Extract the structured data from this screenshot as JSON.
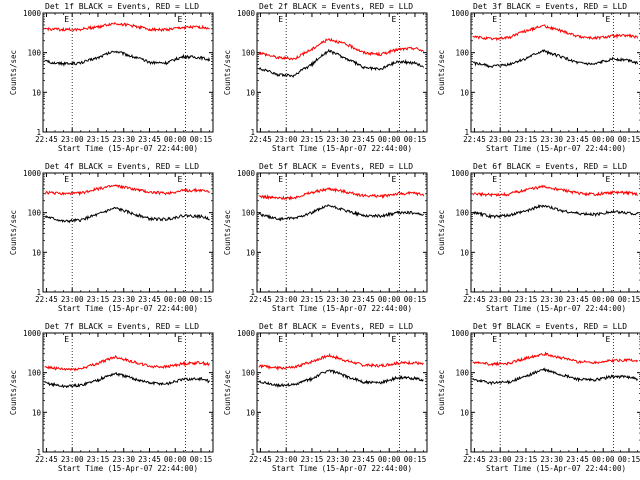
{
  "chart_data": [
    {
      "type": "line",
      "title": "Det 1f BLACK = Events, RED = LLD",
      "xlabel": "Start Time (15-Apr-07 22:44:00)",
      "ylabel": "Counts/sec",
      "yscale": "log",
      "ylim": [
        1,
        1000
      ],
      "xlim": [
        "22:43",
        "00:22"
      ],
      "x_ticks": [
        "22:45",
        "23:00",
        "23:15",
        "23:30",
        "23:45",
        "00:00",
        "00:15"
      ],
      "y_ticks": [
        "1",
        "10",
        "100",
        "1000"
      ],
      "markers": {
        "labels": [
          "E",
          "E"
        ],
        "x": [
          "23:00",
          "00:06"
        ]
      },
      "series": [
        {
          "color": "#ff0000",
          "x": [
            "22:44",
            "22:55",
            "23:05",
            "23:15",
            "23:25",
            "23:35",
            "23:45",
            "23:55",
            "00:05",
            "00:15",
            "00:20"
          ],
          "values": [
            400,
            380,
            390,
            450,
            550,
            480,
            390,
            380,
            430,
            440,
            420
          ]
        },
        {
          "color": "#000000",
          "x": [
            "22:44",
            "22:55",
            "23:05",
            "23:15",
            "23:25",
            "23:35",
            "23:45",
            "23:55",
            "00:05",
            "00:15",
            "00:20"
          ],
          "values": [
            60,
            52,
            55,
            75,
            110,
            80,
            57,
            55,
            80,
            75,
            65
          ]
        }
      ]
    },
    {
      "type": "line",
      "title": "Det 2f BLACK = Events, RED = LLD",
      "xlabel": "Start Time (15-Apr-07 22:44:00)",
      "ylabel": "Counts/sec",
      "yscale": "log",
      "ylim": [
        1,
        1000
      ],
      "xlim": [
        "22:43",
        "00:22"
      ],
      "x_ticks": [
        "22:45",
        "23:00",
        "23:15",
        "23:30",
        "23:45",
        "00:00",
        "00:15"
      ],
      "y_ticks": [
        "1",
        "10",
        "100",
        "1000"
      ],
      "markers": {
        "labels": [
          "E",
          "E"
        ],
        "x": [
          "23:00",
          "00:06"
        ]
      },
      "series": [
        {
          "color": "#ff0000",
          "x": [
            "22:44",
            "22:55",
            "23:05",
            "23:15",
            "23:25",
            "23:35",
            "23:45",
            "23:55",
            "00:05",
            "00:15",
            "00:20"
          ],
          "values": [
            100,
            75,
            70,
            120,
            220,
            160,
            100,
            90,
            120,
            130,
            110
          ]
        },
        {
          "color": "#000000",
          "x": [
            "22:44",
            "22:55",
            "23:05",
            "23:15",
            "23:25",
            "23:35",
            "23:45",
            "23:55",
            "00:05",
            "00:15",
            "00:20"
          ],
          "values": [
            40,
            28,
            26,
            50,
            110,
            70,
            42,
            38,
            60,
            55,
            45
          ]
        }
      ]
    },
    {
      "type": "line",
      "title": "Det 3f BLACK = Events, RED = LLD",
      "xlabel": "Start Time (15-Apr-07 22:44:00)",
      "ylabel": "Counts/sec",
      "yscale": "log",
      "ylim": [
        1,
        1000
      ],
      "xlim": [
        "22:43",
        "00:22"
      ],
      "x_ticks": [
        "22:45",
        "23:00",
        "23:15",
        "23:30",
        "23:45",
        "00:00",
        "00:15"
      ],
      "y_ticks": [
        "1",
        "10",
        "100",
        "1000"
      ],
      "markers": {
        "labels": [
          "E",
          "E"
        ],
        "x": [
          "23:00",
          "00:06"
        ]
      },
      "series": [
        {
          "color": "#ff0000",
          "x": [
            "22:44",
            "22:55",
            "23:05",
            "23:15",
            "23:25",
            "23:35",
            "23:45",
            "23:55",
            "00:05",
            "00:15",
            "00:20"
          ],
          "values": [
            250,
            220,
            240,
            350,
            480,
            360,
            260,
            230,
            260,
            270,
            240
          ]
        },
        {
          "color": "#000000",
          "x": [
            "22:44",
            "22:55",
            "23:05",
            "23:15",
            "23:25",
            "23:35",
            "23:45",
            "23:55",
            "00:05",
            "00:15",
            "00:20"
          ],
          "values": [
            55,
            45,
            50,
            70,
            110,
            80,
            55,
            50,
            70,
            65,
            55
          ]
        }
      ]
    },
    {
      "type": "line",
      "title": "Det 4f BLACK = Events, RED = LLD",
      "xlabel": "Start Time (15-Apr-07 22:44:00)",
      "ylabel": "Counts/sec",
      "yscale": "log",
      "ylim": [
        1,
        1000
      ],
      "xlim": [
        "22:43",
        "00:22"
      ],
      "x_ticks": [
        "22:45",
        "23:00",
        "23:15",
        "23:30",
        "23:45",
        "00:00",
        "00:15"
      ],
      "y_ticks": [
        "1",
        "10",
        "100",
        "1000"
      ],
      "markers": {
        "labels": [
          "E",
          "E"
        ],
        "x": [
          "23:00",
          "00:06"
        ]
      },
      "series": [
        {
          "color": "#ff0000",
          "x": [
            "22:44",
            "22:55",
            "23:05",
            "23:15",
            "23:25",
            "23:35",
            "23:45",
            "23:55",
            "00:05",
            "00:15",
            "00:20"
          ],
          "values": [
            320,
            300,
            310,
            400,
            480,
            400,
            330,
            310,
            360,
            370,
            340
          ]
        },
        {
          "color": "#000000",
          "x": [
            "22:44",
            "22:55",
            "23:05",
            "23:15",
            "23:25",
            "23:35",
            "23:45",
            "23:55",
            "00:05",
            "00:15",
            "00:20"
          ],
          "values": [
            80,
            60,
            65,
            90,
            130,
            95,
            70,
            68,
            85,
            80,
            70
          ]
        }
      ]
    },
    {
      "type": "line",
      "title": "Det 5f BLACK = Events, RED = LLD",
      "xlabel": "Start Time (15-Apr-07 22:44:00)",
      "ylabel": "Counts/sec",
      "yscale": "log",
      "ylim": [
        1,
        1000
      ],
      "xlim": [
        "22:43",
        "00:22"
      ],
      "x_ticks": [
        "22:45",
        "23:00",
        "23:15",
        "23:30",
        "23:45",
        "00:00",
        "00:15"
      ],
      "y_ticks": [
        "1",
        "10",
        "100",
        "1000"
      ],
      "markers": {
        "labels": [
          "E",
          "E"
        ],
        "x": [
          "23:00",
          "00:06"
        ]
      },
      "series": [
        {
          "color": "#ff0000",
          "x": [
            "22:44",
            "22:55",
            "23:05",
            "23:15",
            "23:25",
            "23:35",
            "23:45",
            "23:55",
            "00:05",
            "00:15",
            "00:20"
          ],
          "values": [
            260,
            230,
            240,
            320,
            400,
            330,
            270,
            260,
            300,
            310,
            280
          ]
        },
        {
          "color": "#000000",
          "x": [
            "22:44",
            "22:55",
            "23:05",
            "23:15",
            "23:25",
            "23:35",
            "23:45",
            "23:55",
            "00:05",
            "00:15",
            "00:20"
          ],
          "values": [
            90,
            70,
            72,
            100,
            150,
            110,
            85,
            82,
            100,
            100,
            85
          ]
        }
      ]
    },
    {
      "type": "line",
      "title": "Det 6f BLACK = Events, RED = LLD",
      "xlabel": "Start Time (15-Apr-07 22:44:00)",
      "ylabel": "Counts/sec",
      "yscale": "log",
      "ylim": [
        1,
        1000
      ],
      "xlim": [
        "22:43",
        "00:22"
      ],
      "x_ticks": [
        "22:45",
        "23:00",
        "23:15",
        "23:30",
        "23:45",
        "00:00",
        "00:15"
      ],
      "y_ticks": [
        "1",
        "10",
        "100",
        "1000"
      ],
      "markers": {
        "labels": [
          "E",
          "E"
        ],
        "x": [
          "23:00",
          "00:06"
        ]
      },
      "series": [
        {
          "color": "#ff0000",
          "x": [
            "22:44",
            "22:55",
            "23:05",
            "23:15",
            "23:25",
            "23:35",
            "23:45",
            "23:55",
            "00:05",
            "00:15",
            "00:20"
          ],
          "values": [
            300,
            280,
            290,
            380,
            450,
            380,
            310,
            290,
            320,
            320,
            290
          ]
        },
        {
          "color": "#000000",
          "x": [
            "22:44",
            "22:55",
            "23:05",
            "23:15",
            "23:25",
            "23:35",
            "23:45",
            "23:55",
            "00:05",
            "00:15",
            "00:20"
          ],
          "values": [
            100,
            80,
            85,
            110,
            150,
            115,
            95,
            90,
            105,
            100,
            90
          ]
        }
      ]
    },
    {
      "type": "line",
      "title": "Det 7f BLACK = Events, RED = LLD",
      "xlabel": "Start Time (15-Apr-07 22:44:00)",
      "ylabel": "Counts/sec",
      "yscale": "log",
      "ylim": [
        1,
        1000
      ],
      "xlim": [
        "22:43",
        "00:22"
      ],
      "x_ticks": [
        "22:45",
        "23:00",
        "23:15",
        "23:30",
        "23:45",
        "00:00",
        "00:15"
      ],
      "y_ticks": [
        "1",
        "10",
        "100",
        "1000"
      ],
      "markers": {
        "labels": [
          "E",
          "E"
        ],
        "x": [
          "23:00",
          "00:06"
        ]
      },
      "series": [
        {
          "color": "#ff0000",
          "x": [
            "22:44",
            "22:55",
            "23:05",
            "23:15",
            "23:25",
            "23:35",
            "23:45",
            "23:55",
            "00:05",
            "00:15",
            "00:20"
          ],
          "values": [
            140,
            120,
            125,
            170,
            250,
            190,
            145,
            140,
            170,
            180,
            160
          ]
        },
        {
          "color": "#000000",
          "x": [
            "22:44",
            "22:55",
            "23:05",
            "23:15",
            "23:25",
            "23:35",
            "23:45",
            "23:55",
            "00:05",
            "00:15",
            "00:20"
          ],
          "values": [
            55,
            45,
            48,
            65,
            95,
            72,
            55,
            52,
            68,
            70,
            60
          ]
        }
      ]
    },
    {
      "type": "line",
      "title": "Det 8f BLACK = Events, RED = LLD",
      "xlabel": "Start Time (15-Apr-07 22:44:00)",
      "ylabel": "Counts/sec",
      "yscale": "log",
      "ylim": [
        1,
        1000
      ],
      "xlim": [
        "22:43",
        "00:22"
      ],
      "x_ticks": [
        "22:45",
        "23:00",
        "23:15",
        "23:30",
        "23:45",
        "00:00",
        "00:15"
      ],
      "y_ticks": [
        "1",
        "10",
        "100",
        "1000"
      ],
      "markers": {
        "labels": [
          "E",
          "E"
        ],
        "x": [
          "23:00",
          "00:06"
        ]
      },
      "series": [
        {
          "color": "#ff0000",
          "x": [
            "22:44",
            "22:55",
            "23:05",
            "23:15",
            "23:25",
            "23:35",
            "23:45",
            "23:55",
            "00:05",
            "00:15",
            "00:20"
          ],
          "values": [
            150,
            130,
            135,
            190,
            270,
            200,
            155,
            150,
            175,
            180,
            160
          ]
        },
        {
          "color": "#000000",
          "x": [
            "22:44",
            "22:55",
            "23:05",
            "23:15",
            "23:25",
            "23:35",
            "23:45",
            "23:55",
            "00:05",
            "00:15",
            "00:20"
          ],
          "values": [
            60,
            48,
            50,
            70,
            115,
            80,
            58,
            55,
            75,
            72,
            62
          ]
        }
      ]
    },
    {
      "type": "line",
      "title": "Det 9f BLACK = Events, RED = LLD",
      "xlabel": "Start Time (15-Apr-07 22:44:00)",
      "ylabel": "Counts/sec",
      "yscale": "log",
      "ylim": [
        1,
        1000
      ],
      "xlim": [
        "22:43",
        "00:22"
      ],
      "x_ticks": [
        "22:45",
        "23:00",
        "23:15",
        "23:30",
        "23:45",
        "00:00",
        "00:15"
      ],
      "y_ticks": [
        "1",
        "10",
        "100",
        "1000"
      ],
      "markers": {
        "labels": [
          "E",
          "E"
        ],
        "x": [
          "23:00",
          "00:06"
        ]
      },
      "series": [
        {
          "color": "#ff0000",
          "x": [
            "22:44",
            "22:55",
            "23:05",
            "23:15",
            "23:25",
            "23:35",
            "23:45",
            "23:55",
            "00:05",
            "00:15",
            "00:20"
          ],
          "values": [
            180,
            165,
            170,
            230,
            300,
            240,
            190,
            180,
            200,
            210,
            195
          ]
        },
        {
          "color": "#000000",
          "x": [
            "22:44",
            "22:55",
            "23:05",
            "23:15",
            "23:25",
            "23:35",
            "23:45",
            "23:55",
            "00:05",
            "00:15",
            "00:20"
          ],
          "values": [
            65,
            55,
            58,
            80,
            120,
            90,
            68,
            65,
            80,
            78,
            68
          ]
        }
      ]
    }
  ]
}
